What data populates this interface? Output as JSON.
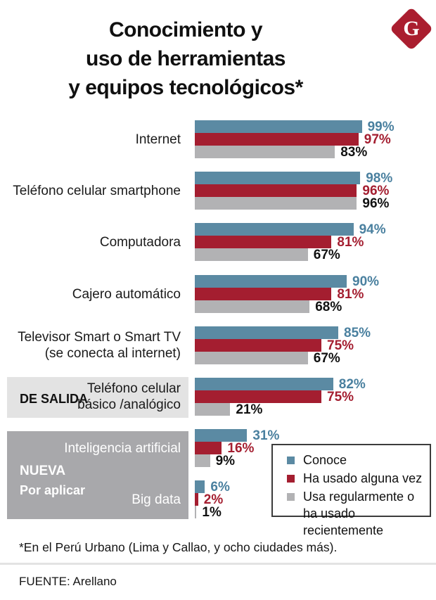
{
  "header": {
    "title_lines": [
      "Conocimiento y",
      "uso de herramientas",
      "y equipos tecnológicos*"
    ],
    "logo_letter": "G"
  },
  "sections": {
    "de_salida": {
      "label": "DE SALIDA"
    },
    "nueva": {
      "label": "NUEVA",
      "sublabel": "Por aplicar"
    }
  },
  "chart_data": {
    "type": "bar",
    "orientation": "horizontal",
    "unit": "%",
    "xlim": [
      0,
      100
    ],
    "grid": false,
    "legend_position": "bottom-right",
    "series_names": [
      "Conoce",
      "Ha usado alguna vez",
      "Usa regularmente o ha usado recientemente"
    ],
    "groups": [
      {
        "label_lines": [
          "Internet"
        ],
        "values": [
          99,
          97,
          83
        ],
        "value_labels": [
          "99%",
          "97%",
          "83%"
        ]
      },
      {
        "label_lines": [
          "Teléfono celular smartphone"
        ],
        "values": [
          98,
          96,
          96
        ],
        "value_labels": [
          "98%",
          "96%",
          "96%"
        ]
      },
      {
        "label_lines": [
          "Computadora"
        ],
        "values": [
          94,
          81,
          67
        ],
        "value_labels": [
          "94%",
          "81%",
          "67%"
        ]
      },
      {
        "label_lines": [
          "Cajero automático"
        ],
        "values": [
          90,
          81,
          68
        ],
        "value_labels": [
          "90%",
          "81%",
          "68%"
        ]
      },
      {
        "label_lines": [
          "Televisor Smart o Smart TV",
          "(se conecta al internet)"
        ],
        "values": [
          85,
          75,
          67
        ],
        "value_labels": [
          "85%",
          "75%",
          "67%"
        ]
      },
      {
        "label_lines": [
          "Teléfono celular",
          "básico /analógico"
        ],
        "values": [
          82,
          75,
          21
        ],
        "value_labels": [
          "82%",
          "75%",
          "21%"
        ],
        "section": "DE SALIDA"
      },
      {
        "label_lines": [
          "Inteligencia artificial"
        ],
        "values": [
          31,
          16,
          9
        ],
        "value_labels": [
          "31%",
          "16%",
          "9%"
        ],
        "section": "NUEVA / Por aplicar",
        "white_label": true
      },
      {
        "label_lines": [
          "Big data"
        ],
        "values": [
          6,
          2,
          1
        ],
        "value_labels": [
          "6%",
          "2%",
          "1%"
        ],
        "section": "NUEVA / Por aplicar",
        "white_label": true
      }
    ],
    "legend": [
      {
        "lines": [
          "Conoce"
        ],
        "color": "#5b8aa3"
      },
      {
        "lines": [
          "Ha usado alguna vez"
        ],
        "color": "#a41e30"
      },
      {
        "lines": [
          "Usa regularmente o",
          "ha usado recientemente"
        ],
        "color": "#b2b2b4"
      }
    ]
  },
  "colors": {
    "series": [
      "#5b8aa3",
      "#a41e30",
      "#b2b2b4"
    ],
    "value_labels": [
      "#4a809f",
      "#a41e30",
      "#111111"
    ],
    "de_salida_box": "#e3e3e3",
    "nueva_box": "#a8a8ab",
    "logo": "#aa1e2f",
    "title_text": "#101010"
  },
  "footer": {
    "note": "*En el Perú Urbano (Lima y Callao, y ocho ciudades más).",
    "source": "FUENTE: Arellano"
  }
}
